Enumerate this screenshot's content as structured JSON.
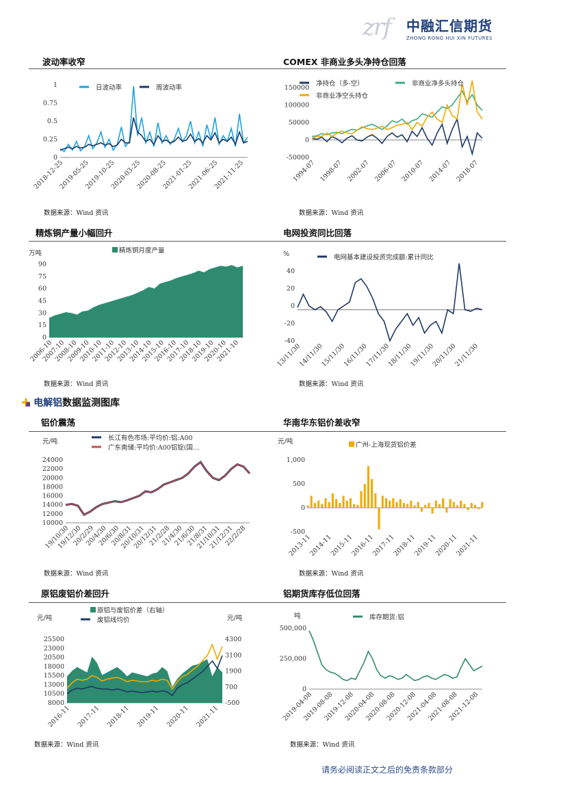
{
  "header": {
    "logo_mark": "zrf",
    "logo_cn": "中融汇信期货",
    "logo_en": "ZHONG RONG HUI XIN FUTURES"
  },
  "section": {
    "title_highlight": "电解铝",
    "title_rest": "数据监测图库",
    "icon": "arrow-cross-icon"
  },
  "source_text": "数据来源：Wind 资讯",
  "footer": "请务必阅读正文之后的免责条款部分",
  "panels": {
    "p1": {
      "title": "波动率收窄"
    },
    "p2": {
      "title": "COMEX 非商业多头净持仓回落"
    },
    "p3": {
      "title": "精炼铜产量小幅回升"
    },
    "p4": {
      "title": "电网投资同比回落"
    },
    "p5": {
      "title": "铝价震荡"
    },
    "p6": {
      "title": "华南华东铝价差收窄"
    },
    "p7": {
      "title": "原铝废铝价差回升"
    },
    "p8": {
      "title": "铝期货库存低位回落"
    }
  },
  "chart_data": [
    {
      "id": "p1",
      "type": "line",
      "ylim": [
        0,
        1
      ],
      "yticks": [
        "0",
        "0.25",
        "0.5",
        "0.75",
        "1"
      ],
      "xticks": [
        "2018-12-25",
        "2019-05-25",
        "2019-10-25",
        "2020-03-25",
        "2020-08-25",
        "2021-01-25",
        "2021-06-25",
        "2021-11-25"
      ],
      "series": [
        {
          "name": "日波动率",
          "color": "#1aa3e0",
          "values": [
            0.12,
            0.08,
            0.18,
            0.1,
            0.22,
            0.09,
            0.15,
            0.3,
            0.12,
            0.2,
            0.35,
            0.14,
            0.25,
            0.1,
            0.18,
            0.42,
            0.15,
            0.22,
            0.98,
            0.3,
            0.55,
            0.2,
            0.35,
            0.15,
            0.48,
            0.2,
            0.3,
            0.18,
            0.25,
            0.4,
            0.22,
            0.3,
            0.5,
            0.2,
            0.35,
            0.15,
            0.45,
            0.25,
            0.55,
            0.18,
            0.3,
            0.22,
            0.4,
            0.15,
            0.6,
            0.2,
            0.28
          ]
        },
        {
          "name": "周波动率",
          "color": "#1f3864",
          "values": [
            0.1,
            0.12,
            0.14,
            0.12,
            0.15,
            0.13,
            0.14,
            0.18,
            0.16,
            0.18,
            0.2,
            0.17,
            0.19,
            0.15,
            0.17,
            0.25,
            0.2,
            0.2,
            0.55,
            0.35,
            0.3,
            0.22,
            0.25,
            0.18,
            0.3,
            0.22,
            0.24,
            0.2,
            0.22,
            0.28,
            0.22,
            0.24,
            0.32,
            0.22,
            0.26,
            0.2,
            0.3,
            0.24,
            0.34,
            0.2,
            0.25,
            0.22,
            0.28,
            0.18,
            0.35,
            0.2,
            0.22
          ]
        }
      ]
    },
    {
      "id": "p2",
      "type": "line",
      "ylim": [
        -50000,
        150000
      ],
      "yticks": [
        "-50000",
        "0",
        "50000",
        "100000",
        "150000"
      ],
      "xticks": [
        "1994-07",
        "1998-07",
        "2002-07",
        "2006-07",
        "2010-07",
        "2014-07",
        "2018-07"
      ],
      "series": [
        {
          "name": "净持仓（多-空）",
          "color": "#1f3864",
          "values": [
            5000,
            2000,
            8000,
            -5000,
            10000,
            3000,
            -8000,
            5000,
            12000,
            0,
            -3000,
            8000,
            15000,
            5000,
            -10000,
            10000,
            20000,
            8000,
            15000,
            -5000,
            25000,
            10000,
            35000,
            5000,
            -15000,
            20000,
            45000,
            -10000,
            30000,
            60000,
            -20000,
            10000,
            -40000,
            20000,
            5000
          ]
        },
        {
          "name": "非商业净多头持仓",
          "color": "#3aa88a",
          "values": [
            10000,
            12000,
            18000,
            15000,
            20000,
            22000,
            18000,
            25000,
            30000,
            28000,
            35000,
            40000,
            45000,
            38000,
            30000,
            40000,
            55000,
            50000,
            60000,
            45000,
            55000,
            60000,
            75000,
            70000,
            65000,
            80000,
            95000,
            90000,
            100000,
            120000,
            140000,
            110000,
            130000,
            100000,
            85000
          ]
        },
        {
          "name": "非商业净空头持仓",
          "color": "#f2a900",
          "values": [
            5000,
            10000,
            10000,
            20000,
            10000,
            19000,
            26000,
            20000,
            18000,
            28000,
            38000,
            32000,
            30000,
            33000,
            40000,
            30000,
            35000,
            42000,
            45000,
            50000,
            30000,
            50000,
            40000,
            65000,
            80000,
            60000,
            50000,
            100000,
            70000,
            60000,
            160000,
            100000,
            170000,
            80000,
            60000
          ]
        }
      ]
    },
    {
      "id": "p3",
      "type": "area",
      "ylim": [
        0,
        90
      ],
      "yunit": "万吨",
      "yticks": [
        "0",
        "15",
        "30",
        "45",
        "60",
        "75",
        "90"
      ],
      "xticks": [
        "2006-10",
        "2007-10",
        "2008-10",
        "2009-10",
        "2010-10",
        "2011-10",
        "2012-10",
        "2013-10",
        "2014-10",
        "2015-10",
        "2016-10",
        "2017-10",
        "2018-10",
        "2019-10",
        "2020-10",
        "2021-10"
      ],
      "series": [
        {
          "name": "精炼铜月度产量",
          "color": "#2e8b6f",
          "values": [
            24,
            27,
            29,
            31,
            30,
            28,
            32,
            33,
            37,
            40,
            42,
            44,
            46,
            48,
            50,
            52,
            55,
            58,
            62,
            60,
            66,
            68,
            70,
            73,
            75,
            77,
            79,
            82,
            80,
            84,
            86,
            88,
            87,
            89,
            86,
            88
          ]
        }
      ]
    },
    {
      "id": "p4",
      "type": "line",
      "ylim": [
        -40,
        50
      ],
      "yunit": "%",
      "yticks": [
        "-40",
        "-20",
        "0",
        "20",
        "40"
      ],
      "xticks": [
        "13/11/30",
        "14/11/30",
        "15/11/30",
        "16/11/30",
        "17/11/30",
        "18/11/30",
        "19/11/30",
        "20/11/30",
        "21/11/30"
      ],
      "series": [
        {
          "name": "电网基本建设投资完成额:累计同比",
          "color": "#1f3864",
          "values": [
            3,
            20,
            5,
            0,
            4,
            -3,
            -15,
            0,
            5,
            10,
            35,
            40,
            30,
            15,
            -5,
            -15,
            -40,
            -25,
            -15,
            -5,
            -20,
            -10,
            -30,
            -20,
            -15,
            -30,
            0,
            -5,
            60,
            0,
            -2,
            2,
            0
          ]
        }
      ]
    },
    {
      "id": "p5",
      "type": "line",
      "ylim": [
        10000,
        24000
      ],
      "yunit": "元/吨",
      "yticks": [
        "10000",
        "12000",
        "14000",
        "16000",
        "18000",
        "20000",
        "22000",
        "24000"
      ],
      "xticks": [
        "19/10/30",
        "19/12/30",
        "20/2/29",
        "20/4/30",
        "20/6/30",
        "20/8/31",
        "20/10/31",
        "20/12/31",
        "21/2/28",
        "21/4/30",
        "21/6/30",
        "21/8/31",
        "21/10/31",
        "21/12/31",
        "22/2/28"
      ],
      "series": [
        {
          "name": "长江有色市场:平均价:铝:A00",
          "color": "#1f3864",
          "values": [
            14000,
            14200,
            13800,
            11800,
            12500,
            13500,
            14200,
            14500,
            14800,
            14600,
            15000,
            15500,
            16000,
            17000,
            16800,
            17500,
            18500,
            19000,
            19500,
            20000,
            21000,
            22500,
            23500,
            21500,
            20000,
            19500,
            20500,
            22000,
            23000,
            22500,
            21000
          ]
        },
        {
          "name": "广东南储:平均价:A00铝锭(国…",
          "color": "#c0504d",
          "values": [
            14000,
            14200,
            13800,
            11800,
            12500,
            13500,
            14200,
            14500,
            14800,
            14600,
            15000,
            15500,
            16000,
            17000,
            16800,
            17500,
            18500,
            19000,
            19500,
            20000,
            21000,
            22500,
            23500,
            21500,
            20000,
            19500,
            20500,
            22000,
            23000,
            22500,
            21000
          ]
        }
      ]
    },
    {
      "id": "p6",
      "type": "bar",
      "ylim": [
        -500,
        1000
      ],
      "yunit": "元/吨",
      "yticks": [
        "-500",
        "0",
        "500",
        "1,000"
      ],
      "xticks": [
        "2013-11",
        "2014-11",
        "2015-11",
        "2016-11",
        "2017-11",
        "2018-11",
        "2019-11",
        "2020-11",
        "2021-11"
      ],
      "series": [
        {
          "name": "广州-上海现货铝价差",
          "color": "#f2a900",
          "values": [
            50,
            250,
            100,
            150,
            80,
            200,
            120,
            300,
            180,
            100,
            250,
            150,
            200,
            80,
            60,
            350,
            500,
            870,
            600,
            300,
            -450,
            250,
            200,
            150,
            200,
            120,
            180,
            100,
            80,
            150,
            50,
            120,
            -80,
            60,
            100,
            -120,
            150,
            80,
            200,
            -100,
            180,
            120,
            50,
            150,
            80,
            -50,
            100,
            60,
            -30,
            120
          ]
        }
      ]
    },
    {
      "id": "p7",
      "type": "line",
      "yunit_left": "元/吨",
      "yunit_right": "元/吨",
      "ylim": [
        8000,
        25500
      ],
      "ylim_right": [
        -500,
        4300
      ],
      "yticks": [
        "8000",
        "10500",
        "13000",
        "15500",
        "18000",
        "20500",
        "23000",
        "25500"
      ],
      "yticks_right": [
        "-500",
        "700",
        "1900",
        "3100",
        "4300"
      ],
      "xticks": [
        "2016-11",
        "2017-11",
        "2018-11",
        "2019-11",
        "2020-11",
        "2021-11"
      ],
      "series": [
        {
          "name": "原铝与废铝价差（右轴）",
          "color": "#2e8b6f",
          "axis": "right",
          "values": [
            1500,
            1900,
            2200,
            2000,
            1800,
            3000,
            2500,
            1600,
            1800,
            2000,
            2200,
            1900,
            1500,
            1800,
            1700,
            1600,
            1500,
            1700,
            1800,
            2200,
            1900,
            700,
            1300,
            1700,
            2000,
            2300,
            2400,
            2600,
            2800,
            1500,
            2200,
            1800
          ]
        },
        {
          "name": "废铝线均价",
          "color": "#1f3864",
          "axis": "left",
          "values": [
            10500,
            11500,
            12000,
            11800,
            12200,
            12500,
            12000,
            11800,
            11800,
            11500,
            11800,
            11500,
            11000,
            11200,
            11000,
            10800,
            11000,
            11200,
            11000,
            11300,
            11000,
            10000,
            12000,
            13000,
            13500,
            14500,
            15500,
            16500,
            18000,
            19500,
            17500,
            21000
          ]
        },
        {
          "name": "",
          "color": "#f2a900",
          "axis": "left",
          "values": [
            12000,
            13500,
            14500,
            14200,
            14500,
            15500,
            15000,
            14000,
            14500,
            14800,
            15000,
            14500,
            13800,
            14200,
            14000,
            13800,
            13800,
            14200,
            14000,
            14500,
            14200,
            11800,
            13800,
            15200,
            15800,
            17000,
            18000,
            19500,
            21000,
            24000,
            20000,
            23500
          ]
        }
      ]
    },
    {
      "id": "p8",
      "type": "line",
      "ylim": [
        0,
        500000
      ],
      "yunit": "吨",
      "yticks": [
        "0",
        "250,000",
        "500,000"
      ],
      "xticks": [
        "2019-04-08",
        "2019-08-08",
        "2019-12-08",
        "2020-04-08",
        "2020-08-08",
        "2020-12-08",
        "2021-04-08",
        "2021-08-08",
        "2021-12-08"
      ],
      "series": [
        {
          "name": "库存期货:铝",
          "color": "#2e8b6f",
          "values": [
            480000,
            400000,
            300000,
            200000,
            160000,
            140000,
            130000,
            110000,
            80000,
            70000,
            90000,
            80000,
            150000,
            220000,
            310000,
            250000,
            160000,
            110000,
            90000,
            110000,
            100000,
            80000,
            90000,
            120000,
            95000,
            70000,
            80000,
            100000,
            110000,
            90000,
            80000,
            100000,
            120000,
            110000,
            90000,
            100000,
            180000,
            250000,
            200000,
            150000,
            170000,
            190000
          ]
        }
      ]
    }
  ]
}
